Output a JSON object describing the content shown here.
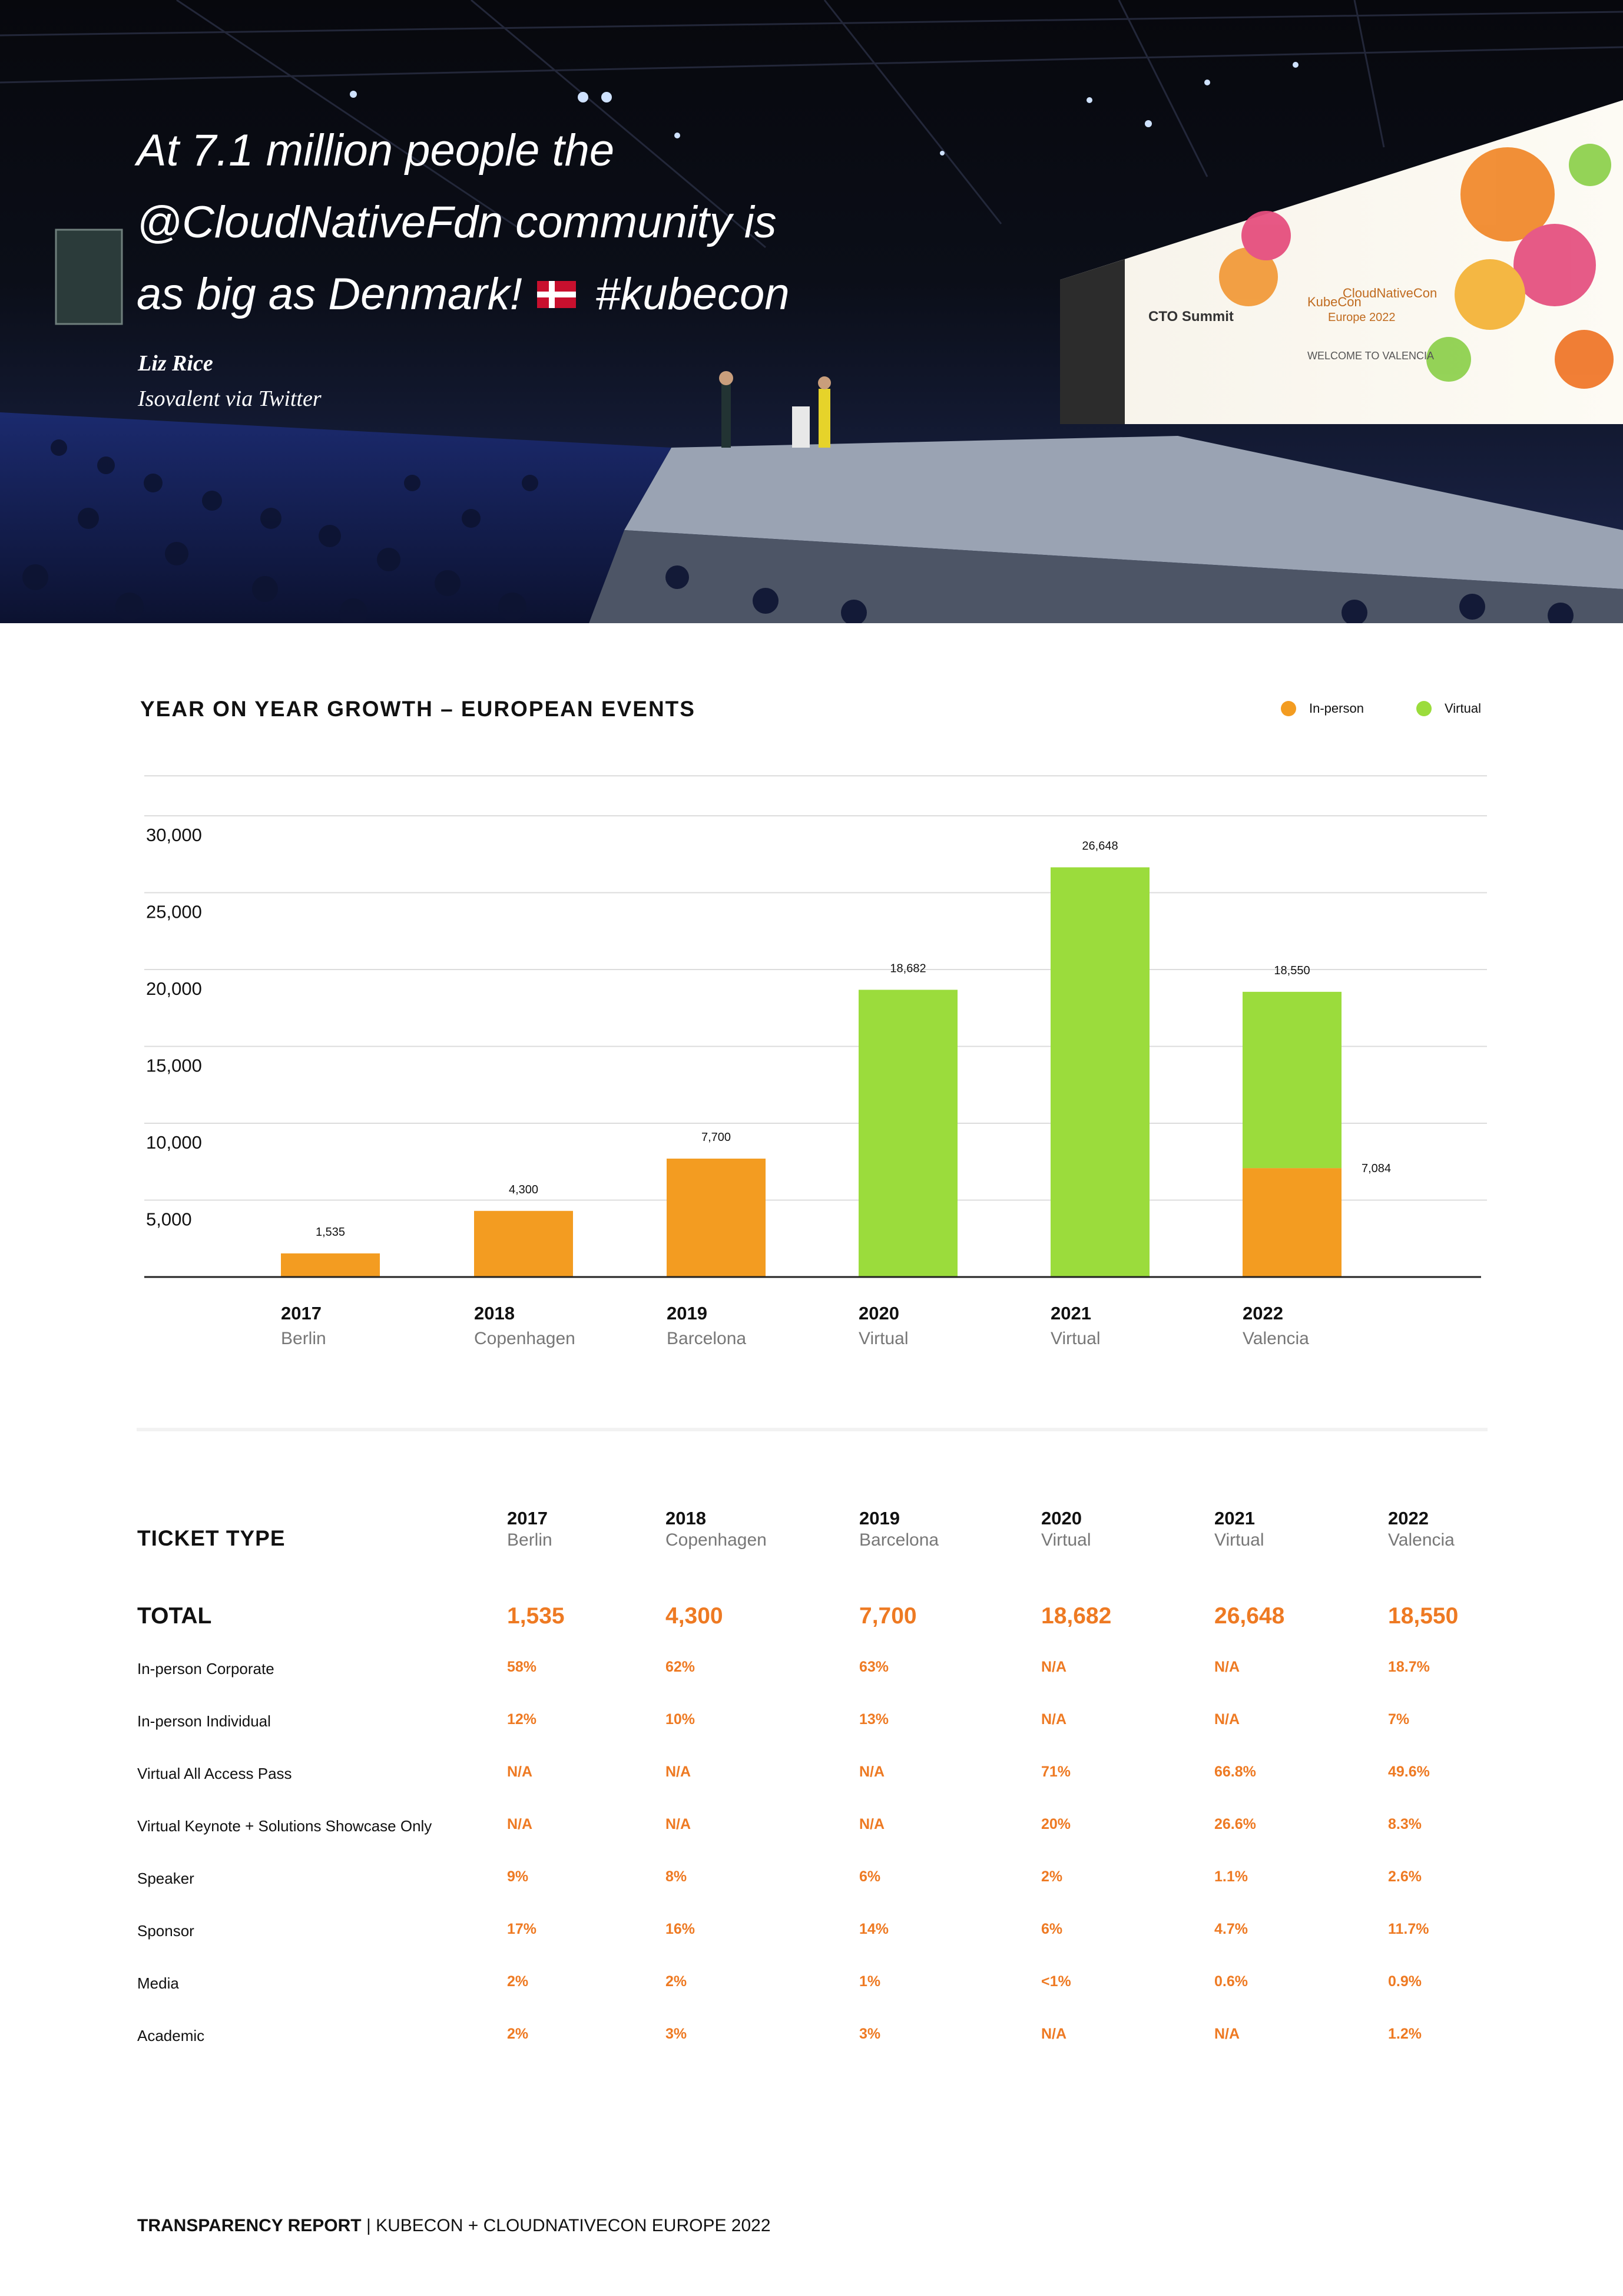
{
  "hero": {
    "quote_lines": [
      "At 7.1 million people the",
      "@CloudNativeFdn community is",
      "as big as Denmark!",
      "#kubecon"
    ],
    "author": "Liz Rice",
    "affiliation": "Isovalent via Twitter",
    "screen_texts": [
      "CTO Summit",
      "KubeCon",
      "CloudNativeCon",
      "Europe 2022",
      "WELCOME TO VALENCIA"
    ]
  },
  "chart_title": "YEAR ON YEAR GROWTH – EUROPEAN EVENTS",
  "legend": [
    {
      "label": "In-person",
      "color": "#f39c21"
    },
    {
      "label": "Virtual",
      "color": "#9bdc3c"
    }
  ],
  "chart_data": {
    "type": "bar",
    "stacked": true,
    "title": "YEAR ON YEAR GROWTH – EUROPEAN EVENTS",
    "categories": [
      "2017",
      "2018",
      "2019",
      "2020",
      "2021",
      "2022"
    ],
    "category_sublabels": [
      "Berlin",
      "Copenhagen",
      "Barcelona",
      "Virtual",
      "Virtual",
      "Valencia"
    ],
    "series": [
      {
        "name": "In-person",
        "color": "#f39c21",
        "values": [
          1535,
          4300,
          7700,
          0,
          0,
          7084
        ]
      },
      {
        "name": "Virtual",
        "color": "#9bdc3c",
        "values": [
          0,
          0,
          0,
          18682,
          26648,
          11466
        ]
      }
    ],
    "data_labels": [
      "1,535",
      "4,300",
      "7,700",
      "18,682",
      "26,648",
      "18,550"
    ],
    "extra_label": "7,084",
    "yticks": [
      "5,000",
      "10,000",
      "15,000",
      "20,000",
      "25,000",
      "30,000"
    ],
    "ylim": [
      0,
      30000
    ],
    "grid": true,
    "legend_position": "top-right"
  },
  "table": {
    "header": "TICKET TYPE",
    "columns": [
      {
        "year": "2017",
        "city": "Berlin"
      },
      {
        "year": "2018",
        "city": "Copenhagen"
      },
      {
        "year": "2019",
        "city": "Barcelona"
      },
      {
        "year": "2020",
        "city": "Virtual"
      },
      {
        "year": "2021",
        "city": "Virtual"
      },
      {
        "year": "2022",
        "city": "Valencia"
      }
    ],
    "total_label": "TOTAL",
    "totals": [
      "1,535",
      "4,300",
      "7,700",
      "18,682",
      "26,648",
      "18,550"
    ],
    "rows": [
      {
        "label": "In-person Corporate",
        "values": [
          "58%",
          "62%",
          "63%",
          "N/A",
          "N/A",
          "18.7%"
        ]
      },
      {
        "label": "In-person Individual",
        "values": [
          "12%",
          "10%",
          "13%",
          "N/A",
          "N/A",
          "7%"
        ]
      },
      {
        "label": "Virtual All Access Pass",
        "values": [
          "N/A",
          "N/A",
          "N/A",
          "71%",
          "66.8%",
          "49.6%"
        ]
      },
      {
        "label": "Virtual Keynote + Solutions Showcase Only",
        "values": [
          "N/A",
          "N/A",
          "N/A",
          "20%",
          "26.6%",
          "8.3%"
        ]
      },
      {
        "label": "Speaker",
        "values": [
          "9%",
          "8%",
          "6%",
          "2%",
          "1.1%",
          "2.6%"
        ]
      },
      {
        "label": "Sponsor",
        "values": [
          "17%",
          "16%",
          "14%",
          "6%",
          "4.7%",
          "11.7%"
        ]
      },
      {
        "label": "Media",
        "values": [
          "2%",
          "2%",
          "1%",
          "<1%",
          "0.6%",
          "0.9%"
        ]
      },
      {
        "label": "Academic",
        "values": [
          "2%",
          "3%",
          "3%",
          "N/A",
          "N/A",
          "1.2%"
        ]
      }
    ]
  },
  "footer": {
    "bold": "TRANSPARENCY REPORT",
    "rest": " | KUBECON + CLOUDNATIVECON EUROPE 2022"
  }
}
